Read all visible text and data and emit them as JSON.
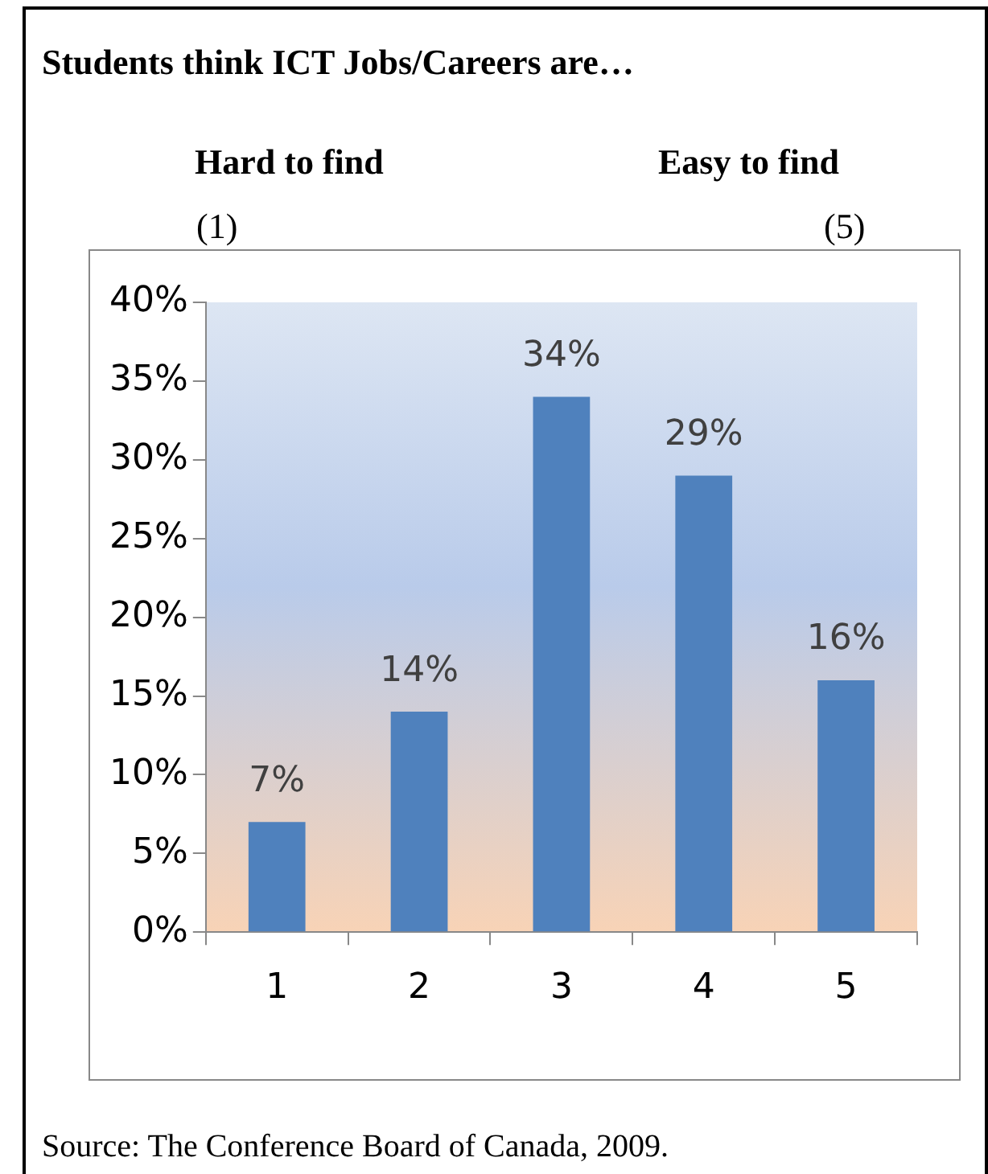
{
  "chart_data": {
    "type": "bar",
    "title": "Students think ICT Jobs/Careers are…",
    "annotations": [
      "Hard to find",
      "Easy to find",
      "(1)",
      "(5)",
      "Source: The Conference Board of Canada, 2009."
    ],
    "categories": [
      "1",
      "2",
      "3",
      "4",
      "5"
    ],
    "values": [
      7,
      14,
      34,
      29,
      16
    ],
    "value_labels": [
      "7%",
      "14%",
      "34%",
      "29%",
      "16%"
    ],
    "color": "#4f81bd",
    "ylim": [
      0,
      40
    ],
    "yticks": [
      {
        "value": 0,
        "label": "0%"
      },
      {
        "value": 5,
        "label": "5%"
      },
      {
        "value": 10,
        "label": "10%"
      },
      {
        "value": 15,
        "label": "15%"
      },
      {
        "value": 20,
        "label": "20%"
      },
      {
        "value": 25,
        "label": "25%"
      },
      {
        "value": 30,
        "label": "30%"
      },
      {
        "value": 35,
        "label": "35%"
      },
      {
        "value": 40,
        "label": "40%"
      }
    ],
    "grid": false,
    "legend": false
  }
}
